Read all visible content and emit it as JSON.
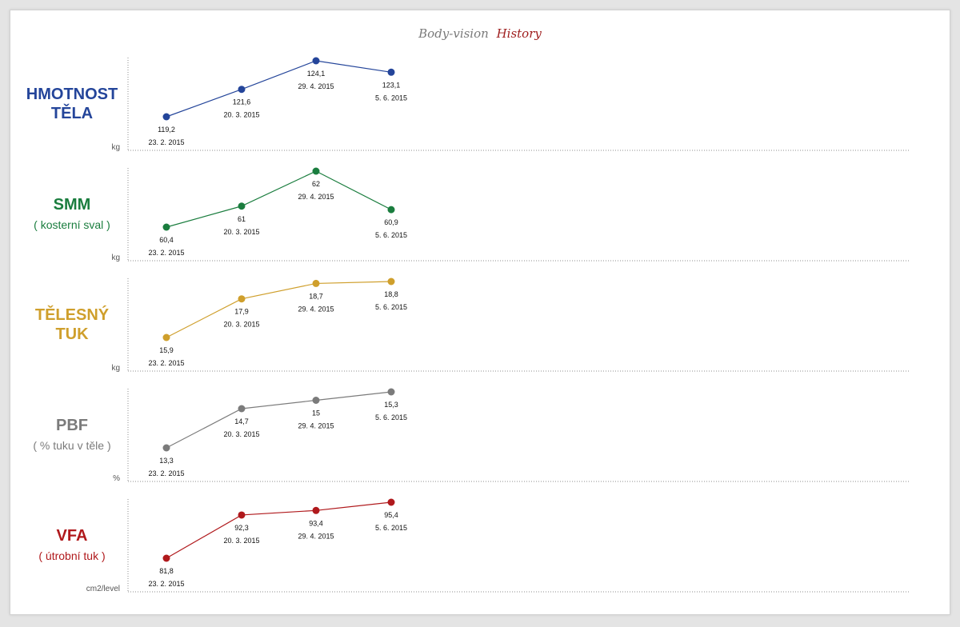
{
  "title": {
    "part1": "Body-vision",
    "part2": "History",
    "part1_color": "#7a7a7a",
    "part2_color": "#9e1c1c"
  },
  "panels": [
    {
      "label_lines": [
        "HMOTNOST",
        "TĚLA"
      ],
      "sublabel": "",
      "unit": "kg",
      "color": "#24459a"
    },
    {
      "label_lines": [
        "SMM"
      ],
      "sublabel": "( kosterní sval )",
      "unit": "kg",
      "color": "#1a7d3e"
    },
    {
      "label_lines": [
        "TĚLESNÝ",
        "TUK"
      ],
      "sublabel": "",
      "unit": "kg",
      "color": "#cf9f2c"
    },
    {
      "label_lines": [
        "PBF"
      ],
      "sublabel": "( % tuku v těle )",
      "unit": "%",
      "color": "#7b7b7b"
    },
    {
      "label_lines": [
        "VFA"
      ],
      "sublabel": "( útrobní tuk )",
      "unit": "cm2/level",
      "color": "#b0191c"
    }
  ],
  "chart_data": [
    {
      "type": "line",
      "x": [
        "23. 2. 2015",
        "20. 3. 2015",
        "29. 4. 2015",
        "5. 6. 2015"
      ],
      "series": [
        {
          "values": [
            119.2,
            121.6,
            124.1,
            123.1
          ],
          "labels": [
            "119,2",
            "121,6",
            "124,1",
            "123,1"
          ]
        }
      ],
      "ylabel": "kg",
      "grid": false
    },
    {
      "type": "line",
      "x": [
        "23. 2. 2015",
        "20. 3. 2015",
        "29. 4. 2015",
        "5. 6. 2015"
      ],
      "series": [
        {
          "values": [
            60.4,
            61,
            62,
            60.9
          ],
          "labels": [
            "60,4",
            "61",
            "62",
            "60,9"
          ]
        }
      ],
      "ylabel": "kg",
      "grid": false
    },
    {
      "type": "line",
      "x": [
        "23. 2. 2015",
        "20. 3. 2015",
        "29. 4. 2015",
        "5. 6. 2015"
      ],
      "series": [
        {
          "values": [
            15.9,
            17.9,
            18.7,
            18.8
          ],
          "labels": [
            "15,9",
            "17,9",
            "18,7",
            "18,8"
          ]
        }
      ],
      "ylabel": "kg",
      "grid": false
    },
    {
      "type": "line",
      "x": [
        "23. 2. 2015",
        "20. 3. 2015",
        "29. 4. 2015",
        "5. 6. 2015"
      ],
      "series": [
        {
          "values": [
            13.3,
            14.7,
            15,
            15.3
          ],
          "labels": [
            "13,3",
            "14,7",
            "15",
            "15,3"
          ]
        }
      ],
      "ylabel": "%",
      "grid": false
    },
    {
      "type": "line",
      "x": [
        "23. 2. 2015",
        "20. 3. 2015",
        "29. 4. 2015",
        "5. 6. 2015"
      ],
      "series": [
        {
          "values": [
            81.8,
            92.3,
            93.4,
            95.4
          ],
          "labels": [
            "81,8",
            "92,3",
            "93,4",
            "95,4"
          ]
        }
      ],
      "ylabel": "cm2/level",
      "grid": false
    }
  ]
}
